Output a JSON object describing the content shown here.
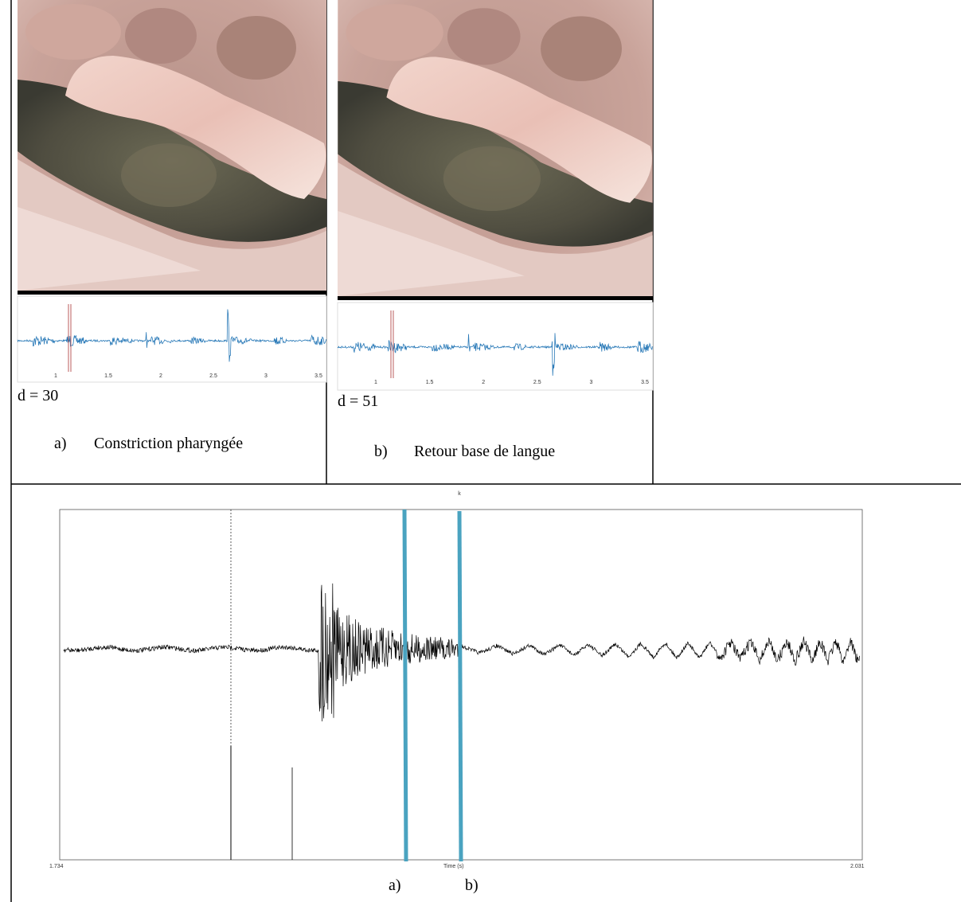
{
  "panels": [
    {
      "axis_ticks": [
        "1",
        "1.5",
        "2",
        "2.5",
        "3",
        "3.5"
      ],
      "d_label": "d = 30",
      "caption_letter": "a)",
      "caption": "Constriction pharyngée"
    },
    {
      "axis_ticks": [
        "1",
        "1.5",
        "2",
        "2.5",
        "3",
        "3.5"
      ],
      "d_label": "d = 51",
      "caption_letter": "b)",
      "caption": "Retour base de langue"
    }
  ],
  "waveform": {
    "title": "k",
    "x_start": "1.734",
    "x_end": "2.031",
    "x_label": "Time (s)",
    "markers": [
      "a)",
      "b)"
    ]
  }
}
